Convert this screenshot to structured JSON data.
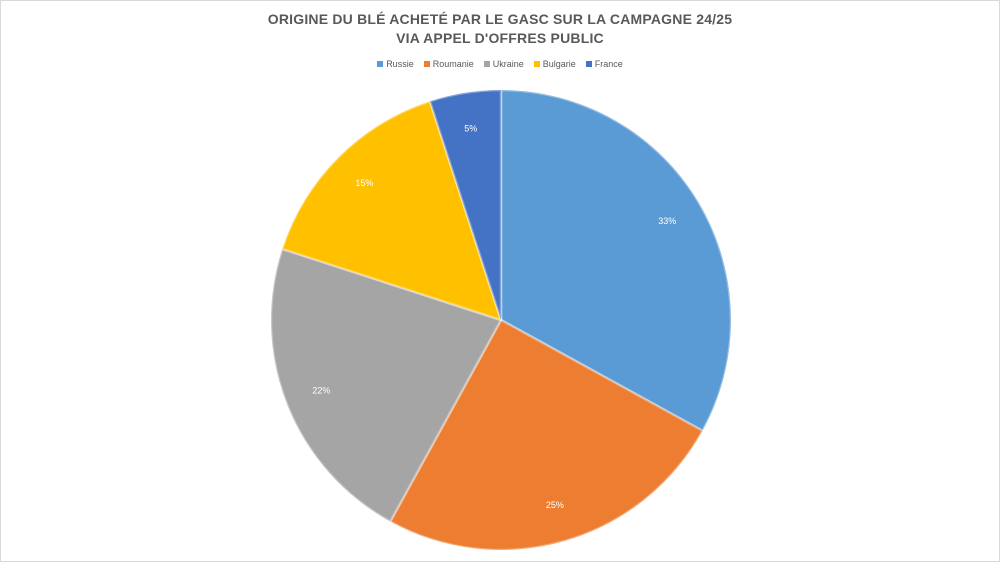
{
  "chart_data": {
    "type": "pie",
    "title": "ORIGINE DU BLÉ ACHETÉ PAR LE GASC SUR LA CAMPAGNE 24/25",
    "subtitle": "VIA APPEL D'OFFRES PUBLIC",
    "categories": [
      "Russie",
      "Roumanie",
      "Ukraine",
      "Bulgarie",
      "France"
    ],
    "values": [
      33,
      25,
      22,
      15,
      5
    ],
    "labels": [
      "33%",
      "25%",
      "22%",
      "15%",
      "5%"
    ],
    "colors": [
      "#5B9BD5",
      "#ED7D31",
      "#A5A5A5",
      "#FFC000",
      "#4472C4"
    ],
    "legend_position": "top"
  }
}
